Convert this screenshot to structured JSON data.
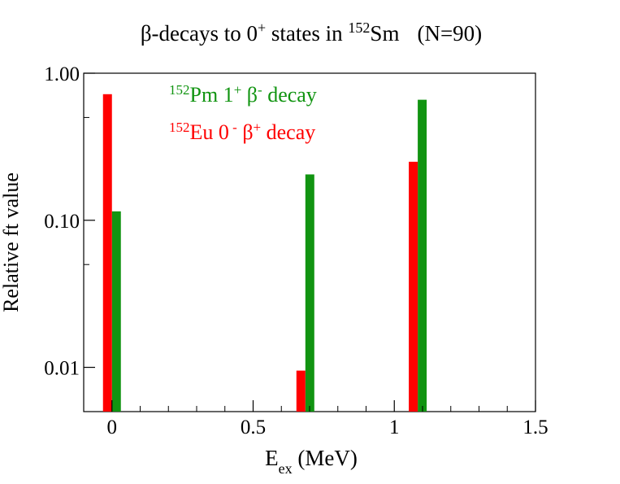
{
  "chart_data": {
    "type": "bar",
    "title": {
      "prefix": "β-decays to 0",
      "sup1": "+",
      "middle": " states in ",
      "sup2": "152",
      "suffix": "Sm",
      "note": "(N=90)"
    },
    "xlabel": {
      "main": "E",
      "sub": "ex",
      "rest": " (MeV)"
    },
    "ylabel": "Relative ft value",
    "x_scale": "linear",
    "y_scale": "log",
    "xlim": [
      -0.1,
      1.5
    ],
    "ylim": [
      0.005,
      1.0
    ],
    "x_ticks": [
      {
        "value": 0,
        "label": "0"
      },
      {
        "value": 0.5,
        "label": "0.5"
      },
      {
        "value": 1.0,
        "label": "1"
      },
      {
        "value": 1.5,
        "label": "1.5"
      }
    ],
    "y_ticks": [
      {
        "value": 0.01,
        "label": "0.01"
      },
      {
        "value": 0.1,
        "label": "0.10"
      },
      {
        "value": 1.0,
        "label": "1.00"
      }
    ],
    "grid": false,
    "legend_placement": "top-left (inside plot)",
    "series": [
      {
        "name_parts": {
          "sup": "152",
          "base": "Pm 1",
          "sup2": "+",
          "mid": " β",
          "sup3": "-",
          "tail": " decay"
        },
        "color": "#119411",
        "x": [
          0.0,
          0.685,
          1.083
        ],
        "values": [
          0.115,
          0.205,
          0.66
        ]
      },
      {
        "name_parts": {
          "sup": "152",
          "base": "Eu 0",
          "sup2": " -",
          "mid": " β",
          "sup3": "+",
          "tail": " decay"
        },
        "color": "#ff0000",
        "x": [
          0.0,
          0.685,
          1.083
        ],
        "values": [
          0.72,
          0.0095,
          0.25
        ]
      }
    ]
  }
}
